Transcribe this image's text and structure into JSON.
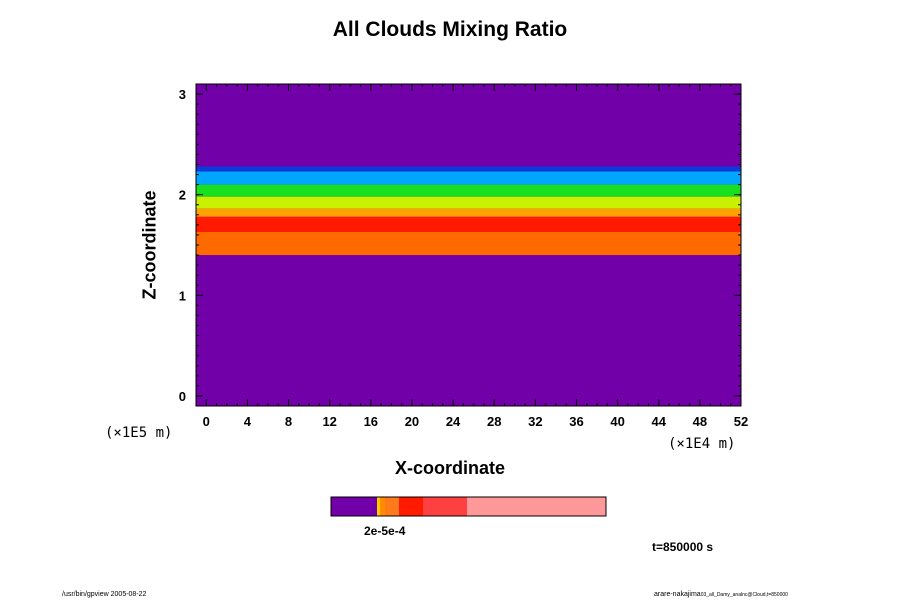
{
  "chart_data": {
    "type": "heatmap",
    "title": "All Clouds Mixing Ratio",
    "xlabel": "X-coordinate",
    "ylabel": "Z-coordinate",
    "x_unit": "(×1E4 m)",
    "y_unit": "(×1E5 m)",
    "xlim": [
      -1,
      52
    ],
    "ylim": [
      -0.1,
      3.1
    ],
    "x_ticks": [
      "0",
      "4",
      "8",
      "12",
      "16",
      "20",
      "24",
      "28",
      "32",
      "36",
      "40",
      "44",
      "48",
      "52"
    ],
    "y_ticks": [
      "0",
      "1",
      "2",
      "3"
    ],
    "cloud_layers": [
      {
        "z_bottom": 2.23,
        "z_top": 2.28,
        "color": "#0b3bd8"
      },
      {
        "z_bottom": 2.1,
        "z_top": 2.23,
        "color": "#00a6ff"
      },
      {
        "z_bottom": 1.98,
        "z_top": 2.1,
        "color": "#19e01e"
      },
      {
        "z_bottom": 1.86,
        "z_top": 1.98,
        "color": "#c8f000"
      },
      {
        "z_bottom": 1.78,
        "z_top": 1.86,
        "color": "#ffa100"
      },
      {
        "z_bottom": 1.63,
        "z_top": 1.78,
        "color": "#ff1a00"
      },
      {
        "z_bottom": 1.4,
        "z_top": 1.63,
        "color": "#ff6a00"
      }
    ],
    "background_color": "#7200a8",
    "colorbar": {
      "colors": [
        "#7200a8",
        "#ffcc00",
        "#ff8c00",
        "#ff7a1a",
        "#ff1a00",
        "#ff4040",
        "#ff9999"
      ],
      "label": "2e-5e-4"
    },
    "time_label": "t=850000 s"
  },
  "footer": {
    "left": "/usr/bin/gpview 2005-08-22",
    "right": "arare-nakajima",
    "right_small": "03_all_Damy_analnc@Cloud,t=850000"
  }
}
